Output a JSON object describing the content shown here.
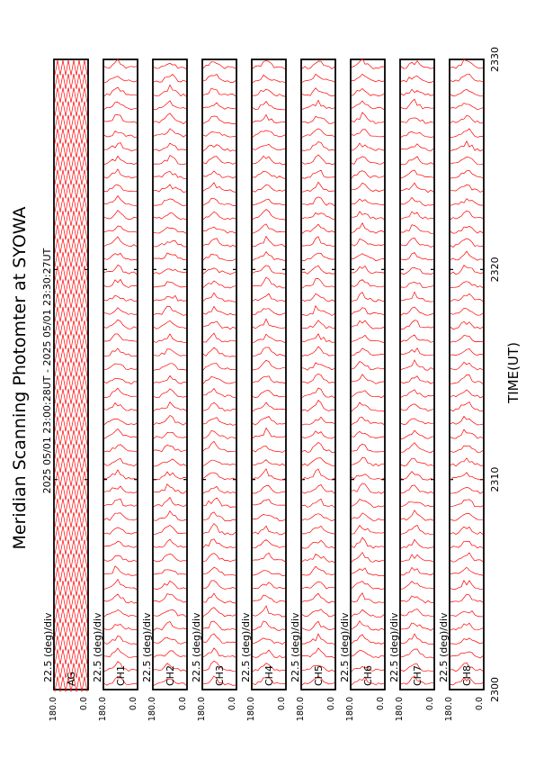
{
  "chart_data": {
    "type": "line",
    "orientation": "rotated-90-ccw",
    "title": "Meridian Scanning Photomter at SYOWA",
    "header": "2025 05/01 23:00:28UT - 2025 05/01 23:30:27UT",
    "xlabel": "TIME(UT)",
    "x_ticks": [
      "2300",
      "2310",
      "2320",
      "2330"
    ],
    "xlim": [
      0,
      30
    ],
    "y_ticks": [
      "0.0",
      "180.0"
    ],
    "ylim": [
      0,
      180
    ],
    "scale_label": "22.5 (deg)/div",
    "line_color": "#ff0000",
    "panels": [
      {
        "channel": "AG",
        "kind": "scan-angle"
      },
      {
        "channel": "CH1",
        "kind": "intensity"
      },
      {
        "channel": "CH2",
        "kind": "intensity"
      },
      {
        "channel": "CH3",
        "kind": "intensity"
      },
      {
        "channel": "CH4",
        "kind": "intensity"
      },
      {
        "channel": "CH5",
        "kind": "intensity"
      },
      {
        "channel": "CH6",
        "kind": "intensity"
      },
      {
        "channel": "CH7",
        "kind": "intensity"
      },
      {
        "channel": "CH8",
        "kind": "intensity"
      }
    ]
  }
}
